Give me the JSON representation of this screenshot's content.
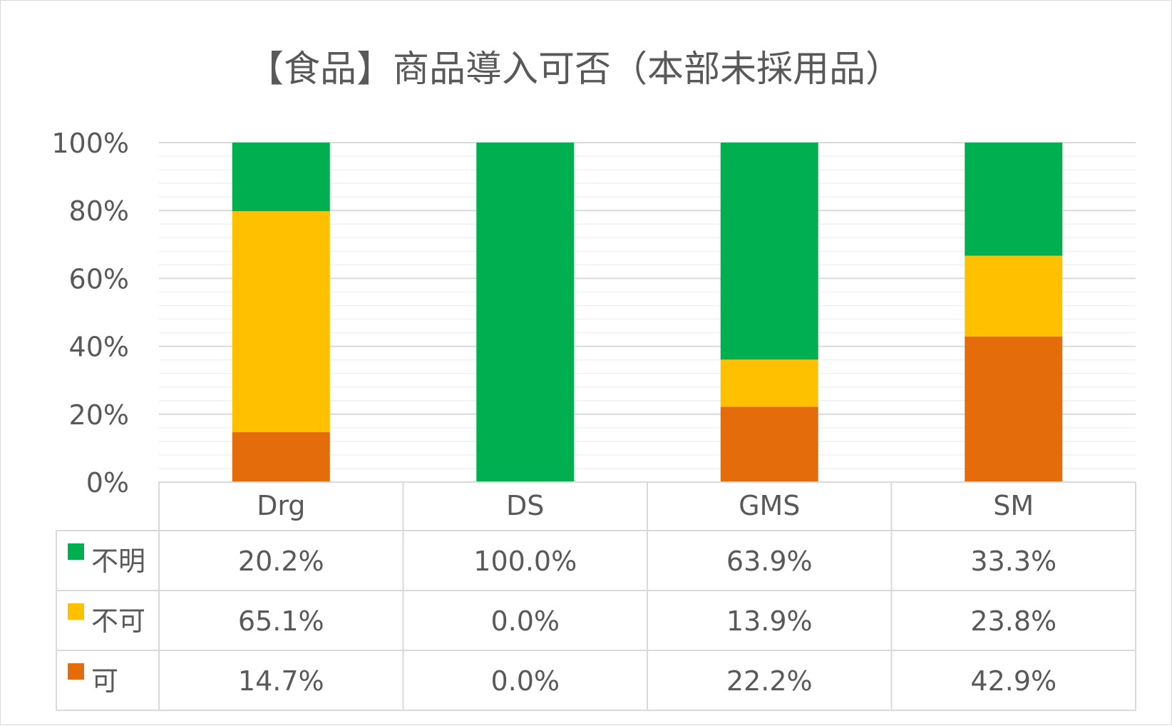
{
  "chart_data": {
    "type": "bar",
    "stacked": true,
    "percent_stacked": true,
    "title": "【食品】商品導入可否（本部未採用品）",
    "categories": [
      "Drg",
      "DS",
      "GMS",
      "SM"
    ],
    "y_ticks": [
      "100%",
      "80%",
      "60%",
      "40%",
      "20%",
      "0%"
    ],
    "ylim": [
      0,
      100
    ],
    "grid": true,
    "legend_position": "data-table",
    "series": [
      {
        "name": "不明",
        "color": "#00b050",
        "values": [
          20.2,
          100.0,
          63.9,
          33.3
        ],
        "labels": [
          "20.2%",
          "100.0%",
          "63.9%",
          "33.3%"
        ]
      },
      {
        "name": "不可",
        "color": "#ffc000",
        "values": [
          65.1,
          0.0,
          13.9,
          23.8
        ],
        "labels": [
          "65.1%",
          "0.0%",
          "13.9%",
          "23.8%"
        ]
      },
      {
        "name": "可",
        "color": "#e46c0a",
        "values": [
          14.7,
          0.0,
          22.2,
          42.9
        ],
        "labels": [
          "14.7%",
          "0.0%",
          "22.2%",
          "42.9%"
        ]
      }
    ]
  }
}
